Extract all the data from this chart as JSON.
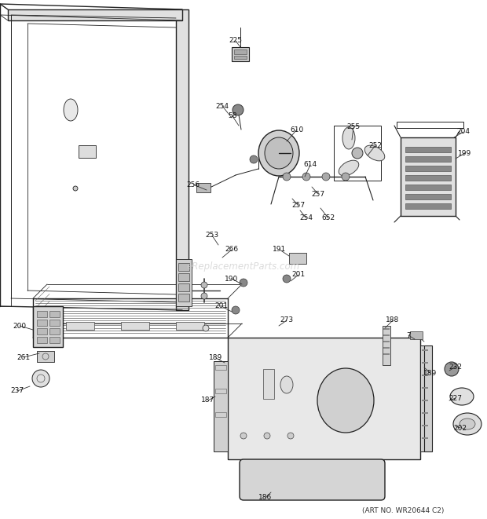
{
  "bg_color": "#ffffff",
  "line_color": "#333333",
  "watermark_text": "eReplacementParts.com",
  "art_no_text": "(ART NO. WR20644 C2)",
  "fig_width": 6.2,
  "fig_height": 6.61,
  "dpi": 100
}
